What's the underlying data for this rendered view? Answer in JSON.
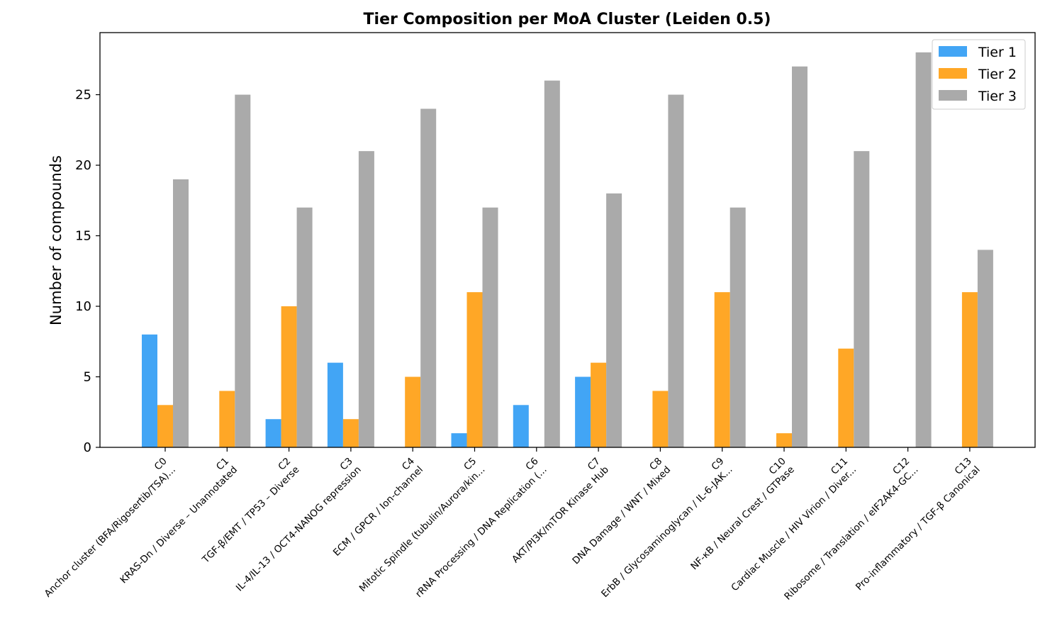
{
  "chart_data": {
    "type": "bar",
    "title": "Tier Composition per MoA Cluster (Leiden 0.5)",
    "xlabel": "",
    "ylabel": "Number of compounds",
    "ylim": [
      0,
      29.4
    ],
    "yticks": [
      0,
      5,
      10,
      15,
      20,
      25
    ],
    "grid": false,
    "legend_position": "upper right",
    "categories": [
      "C0\nAnchor cluster (BFA/Rigosertib/TSA)...",
      "C1\nKRAS-Dn / Diverse – Unannotated",
      "C2\nTGF-β/EMT / TP53 – Diverse",
      "C3\nIL-4/IL-13 / OCT4-NANOG repression",
      "C4\nECM / GPCR / Ion-channel",
      "C5\nMitotic Spindle (tubulin/Aurora/kin...",
      "C6\nrRNA Processing / DNA Replication (...",
      "C7\nAKT/PI3K/mTOR Kinase Hub",
      "C8\nDNA Damage / WNT / Mixed",
      "C9\nErbB / Glycosaminoglycan / IL-6-JAK...",
      "C10\nNF-κB / Neural Crest / GTPase",
      "C11\nCardiac Muscle / HIV Virion / Diver...",
      "C12\nRibosome / Translation / eIF2AK4-GC...",
      "C13\nPro-inflammatory / TGF-β Canonical"
    ],
    "series": [
      {
        "name": "Tier 1",
        "color": "#42a5f5",
        "values": [
          8,
          0,
          2,
          6,
          0,
          1,
          3,
          5,
          0,
          0,
          0,
          0,
          0,
          0
        ]
      },
      {
        "name": "Tier 2",
        "color": "#ffa726",
        "values": [
          3,
          4,
          10,
          2,
          5,
          11,
          0,
          6,
          4,
          11,
          1,
          7,
          0,
          11
        ]
      },
      {
        "name": "Tier 3",
        "color": "#aaaaaa",
        "values": [
          19,
          25,
          17,
          21,
          24,
          17,
          26,
          18,
          25,
          17,
          27,
          21,
          28,
          14
        ]
      }
    ]
  }
}
